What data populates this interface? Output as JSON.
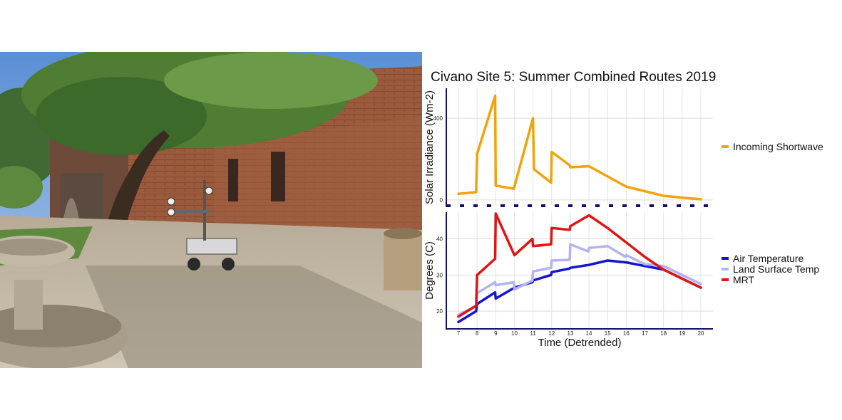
{
  "chart_data": [
    {
      "type": "line",
      "title": "Civano Site 5: Summer Combined Routes 2019",
      "ylabel": "Solar Irradiance (Wm-2)",
      "xlabel": "",
      "xlim": [
        7,
        20
      ],
      "ylim": [
        -25,
        540
      ],
      "yticks": [
        0,
        400
      ],
      "grid": true,
      "legend_position": "right",
      "series": [
        {
          "name": "Incoming Shortwave",
          "color": "#f0a30a",
          "x": [
            7,
            7.95,
            8.0,
            8.97,
            9.0,
            9.97,
            11.0,
            11.05,
            11.97,
            12.0,
            12.97,
            13.0,
            14.0,
            16.0,
            18.0,
            20.0
          ],
          "y": [
            30,
            38,
            225,
            510,
            70,
            55,
            400,
            150,
            85,
            235,
            170,
            160,
            165,
            65,
            20,
            3
          ]
        }
      ]
    },
    {
      "type": "line",
      "xlabel": "Time (Detrended)",
      "ylabel": "Degrees (C)",
      "xlim": [
        7,
        20
      ],
      "ylim": [
        15.5,
        47
      ],
      "xticks": [
        7,
        8,
        9,
        10,
        11,
        12,
        13,
        14,
        15,
        16,
        17,
        18,
        19,
        20
      ],
      "yticks": [
        20,
        30,
        40
      ],
      "grid": true,
      "legend_position": "right",
      "series": [
        {
          "name": "Air Temperature",
          "color": "#1414d2",
          "x": [
            7,
            7.95,
            8.0,
            8.97,
            9.0,
            10.0,
            10.97,
            11.0,
            11.97,
            12.0,
            12.97,
            13.0,
            14.0,
            15.0,
            16.0,
            17.0,
            18.0,
            19.0,
            20.0
          ],
          "y": [
            17.0,
            20.0,
            22.0,
            25.2,
            23.5,
            26.5,
            28.0,
            28.5,
            30.0,
            30.8,
            31.8,
            32.0,
            32.8,
            34.0,
            33.5,
            32.5,
            31.5,
            29.0,
            26.5
          ]
        },
        {
          "name": "Land Surface Temp",
          "color": "#b3b3f2",
          "x": [
            7,
            7.95,
            8.0,
            8.97,
            9.0,
            9.97,
            10.0,
            10.97,
            11.0,
            11.97,
            12.0,
            12.97,
            13.0,
            13.97,
            14.0,
            15.0,
            15.97,
            16.0,
            17.0,
            18.0,
            19.0,
            20.0
          ],
          "y": [
            19.0,
            21.5,
            25.0,
            28.0,
            27.2,
            28.0,
            26.0,
            28.5,
            31.0,
            32.0,
            34.0,
            34.2,
            38.5,
            36.5,
            37.5,
            38.0,
            35.0,
            35.5,
            33.0,
            32.5,
            30.0,
            27.5
          ]
        },
        {
          "name": "MRT",
          "color": "#e01414",
          "x": [
            7,
            7.95,
            8.0,
            8.97,
            9.0,
            10.0,
            10.97,
            11.0,
            11.97,
            12.0,
            12.97,
            13.0,
            14.0,
            15.0,
            16.0,
            17.0,
            18.0,
            19.0,
            20.0
          ],
          "y": [
            18.5,
            21.5,
            30.0,
            34.5,
            47.0,
            35.5,
            40.0,
            38.0,
            38.5,
            43.0,
            42.5,
            43.5,
            46.5,
            43.0,
            39.0,
            35.0,
            31.5,
            29.0,
            26.5
          ]
        }
      ]
    }
  ]
}
